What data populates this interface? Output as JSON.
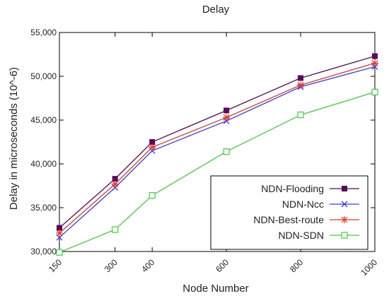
{
  "chart_data": {
    "type": "line",
    "title": "Delay",
    "xlabel": "Node Number",
    "ylabel": "Delay in microseconds (10^-6)",
    "x": [
      150,
      300,
      400,
      600,
      800,
      1000
    ],
    "x_tick_labels": [
      "150",
      "300",
      "400",
      "600",
      "800",
      "1000"
    ],
    "ylim": [
      30000,
      55000
    ],
    "y_ticks": [
      30000,
      35000,
      40000,
      45000,
      50000,
      55000
    ],
    "y_tick_labels": [
      "30,000",
      "35,000",
      "40,000",
      "45,000",
      "50,000",
      "55,000"
    ],
    "grid": false,
    "legend_position": "bottom-right",
    "series": [
      {
        "name": "NDN-Flooding",
        "color": "#5a0a5a",
        "marker": "filled-square",
        "values": [
          32700,
          38300,
          42500,
          46100,
          49800,
          52300
        ]
      },
      {
        "name": "NDN-Ncc",
        "color": "#3a3af0",
        "marker": "x",
        "values": [
          31600,
          37300,
          41500,
          44900,
          48800,
          51100
        ]
      },
      {
        "name": "NDN-Best-route",
        "color": "#e83a2a",
        "marker": "asterisk",
        "values": [
          32100,
          37700,
          41900,
          45300,
          49000,
          51500
        ]
      },
      {
        "name": "NDN-SDN",
        "color": "#3ed23e",
        "marker": "open-square",
        "values": [
          29900,
          32500,
          36400,
          41400,
          45600,
          48200
        ]
      }
    ]
  }
}
